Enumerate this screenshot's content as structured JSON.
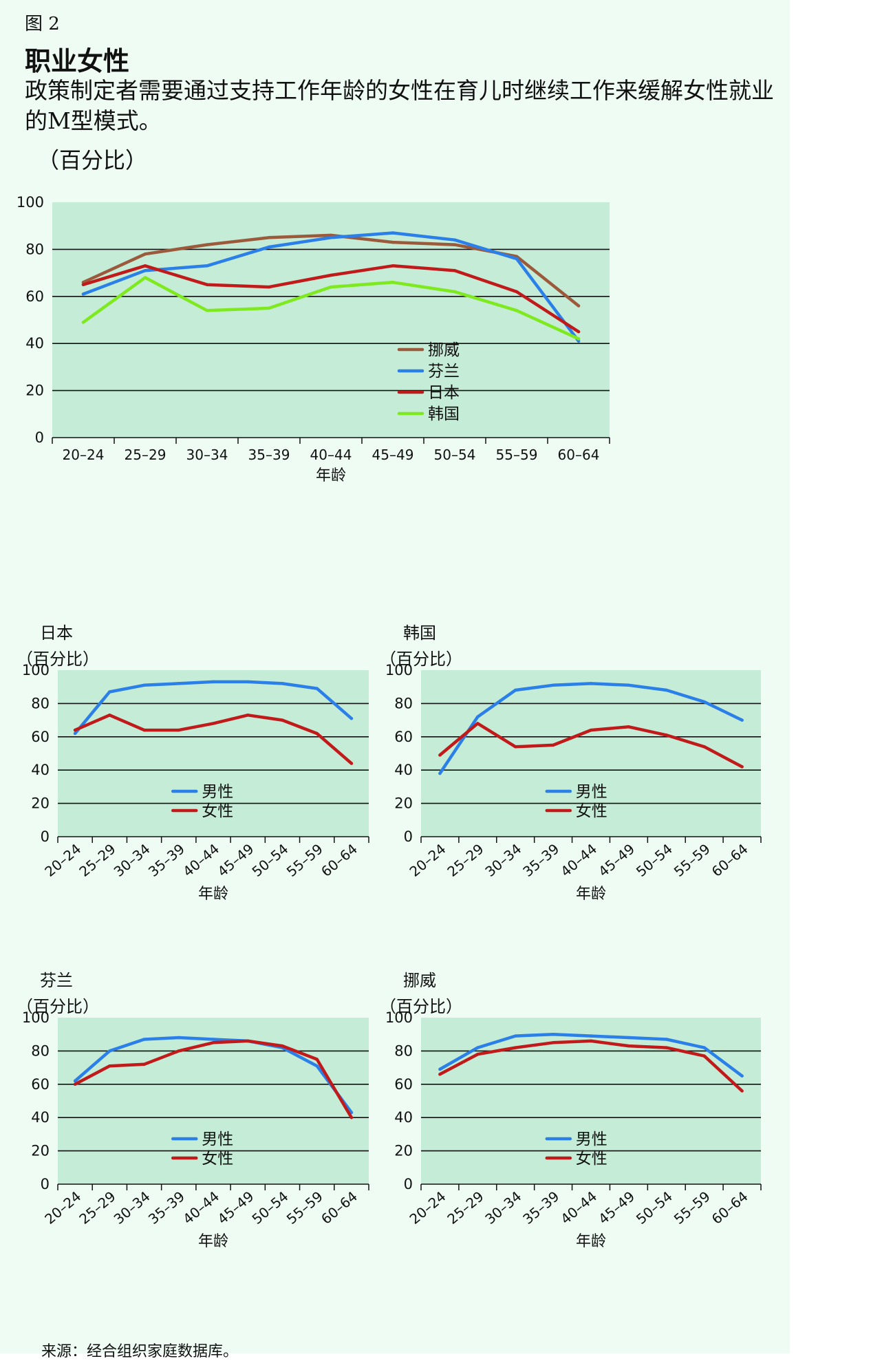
{
  "figure": {
    "label": "图 2",
    "title": "职业女性",
    "subtitle": "政策制定者需要通过支持工作年龄的女性在育儿时继续工作来缓解女性就业的M型模式。",
    "unit": "（百分比）",
    "source": "来源：经合组织家庭数据库。"
  },
  "colors": {
    "panel_bg": "#eefcf4",
    "plot_bg": "#c5ecd6",
    "norway": "#9b5a3c",
    "finland": "#2a7fe8",
    "japan": "#c01a1a",
    "korea": "#7ee91f",
    "male": "#2a7fe8",
    "female": "#c01a1a"
  },
  "chart_data": [
    {
      "id": "main",
      "type": "line",
      "title": "",
      "unit_label": "",
      "xlabel": "年龄",
      "ylabel": "（百分比）",
      "ylim": [
        0,
        100
      ],
      "yticks": [
        0,
        20,
        40,
        60,
        80,
        100
      ],
      "rotate_ticks": false,
      "legend_position": "bottom-right",
      "categories": [
        "20–24",
        "25–29",
        "30–34",
        "35–39",
        "40–44",
        "45–49",
        "50–54",
        "55–59",
        "60–64"
      ],
      "series": [
        {
          "name": "挪威",
          "color": "#9b5a3c",
          "values": [
            66,
            78,
            82,
            85,
            86,
            83,
            82,
            77,
            56
          ]
        },
        {
          "name": "芬兰",
          "color": "#2a7fe8",
          "values": [
            61,
            71,
            73,
            81,
            85,
            87,
            84,
            76,
            41
          ]
        },
        {
          "name": "日本",
          "color": "#c01a1a",
          "values": [
            65,
            73,
            65,
            64,
            69,
            73,
            71,
            62,
            45
          ]
        },
        {
          "name": "韩国",
          "color": "#7ee91f",
          "values": [
            49,
            68,
            54,
            55,
            64,
            66,
            62,
            54,
            42
          ]
        }
      ]
    },
    {
      "id": "japan",
      "type": "line",
      "title": "日本",
      "unit_label": "（百分比）",
      "xlabel": "年龄",
      "ylim": [
        0,
        100
      ],
      "yticks": [
        0,
        20,
        40,
        60,
        80,
        100
      ],
      "rotate_ticks": true,
      "legend_position": "bottom-center",
      "categories": [
        "20–24",
        "25–29",
        "30–34",
        "35–39",
        "40–44",
        "45–49",
        "50–54",
        "55–59",
        "60–64"
      ],
      "series": [
        {
          "name": "男性",
          "color": "#2a7fe8",
          "values": [
            62,
            87,
            91,
            92,
            93,
            93,
            92,
            89,
            71
          ]
        },
        {
          "name": "女性",
          "color": "#c01a1a",
          "values": [
            64,
            73,
            64,
            64,
            68,
            73,
            70,
            62,
            44
          ]
        }
      ]
    },
    {
      "id": "korea",
      "type": "line",
      "title": "韩国",
      "unit_label": "（百分比）",
      "xlabel": "年龄",
      "ylim": [
        0,
        100
      ],
      "yticks": [
        0,
        20,
        40,
        60,
        80,
        100
      ],
      "rotate_ticks": true,
      "legend_position": "bottom-center",
      "categories": [
        "20–24",
        "25–29",
        "30–34",
        "35–39",
        "40–44",
        "45–49",
        "50–54",
        "55–59",
        "60–64"
      ],
      "series": [
        {
          "name": "男性",
          "color": "#2a7fe8",
          "values": [
            38,
            72,
            88,
            91,
            92,
            91,
            88,
            81,
            70
          ]
        },
        {
          "name": "女性",
          "color": "#c01a1a",
          "values": [
            49,
            68,
            54,
            55,
            64,
            66,
            61,
            54,
            42
          ]
        }
      ]
    },
    {
      "id": "finland",
      "type": "line",
      "title": "芬兰",
      "unit_label": "（百分比）",
      "xlabel": "年龄",
      "ylim": [
        0,
        100
      ],
      "yticks": [
        0,
        20,
        40,
        60,
        80,
        100
      ],
      "rotate_ticks": true,
      "legend_position": "bottom-center",
      "categories": [
        "20–24",
        "25–29",
        "30–34",
        "35–39",
        "40–44",
        "45–49",
        "50–54",
        "55–59",
        "60–64"
      ],
      "series": [
        {
          "name": "男性",
          "color": "#2a7fe8",
          "values": [
            62,
            80,
            87,
            88,
            87,
            86,
            82,
            71,
            43
          ]
        },
        {
          "name": "女性",
          "color": "#c01a1a",
          "values": [
            60,
            71,
            72,
            80,
            85,
            86,
            83,
            75,
            40
          ]
        }
      ]
    },
    {
      "id": "norway",
      "type": "line",
      "title": "挪威",
      "unit_label": "（百分比）",
      "xlabel": "年龄",
      "ylim": [
        0,
        100
      ],
      "yticks": [
        0,
        20,
        40,
        60,
        80,
        100
      ],
      "rotate_ticks": true,
      "legend_position": "bottom-center",
      "categories": [
        "20–24",
        "25–29",
        "30–34",
        "35–39",
        "40–44",
        "45–49",
        "50–54",
        "55–59",
        "60–64"
      ],
      "series": [
        {
          "name": "男性",
          "color": "#2a7fe8",
          "values": [
            69,
            82,
            89,
            90,
            89,
            88,
            87,
            82,
            65
          ]
        },
        {
          "name": "女性",
          "color": "#c01a1a",
          "values": [
            66,
            78,
            82,
            85,
            86,
            83,
            82,
            77,
            56
          ]
        }
      ]
    }
  ]
}
